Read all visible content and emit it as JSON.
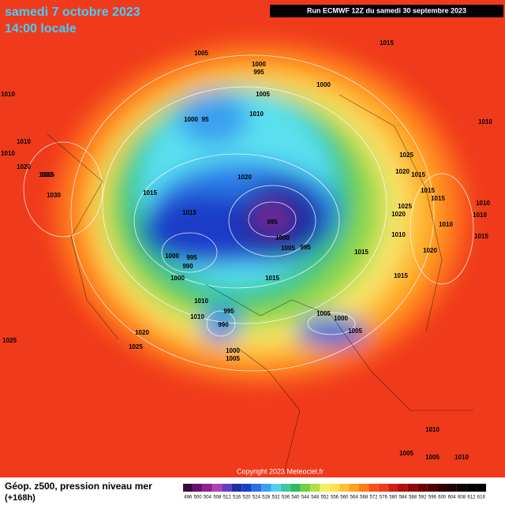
{
  "header": {
    "date": "samedi 7 octobre 2023",
    "time": "14:00 locale",
    "run": "Run ECMWF 12Z du samedi 30 septembre 2023"
  },
  "isobar_labels": [
    "1005",
    "1000",
    "995",
    "1015",
    "1010",
    "1000",
    "1005",
    "1000",
    "95",
    "1010",
    "1010",
    "1010",
    "1025",
    "1030",
    "1015",
    "1020",
    "1015",
    "995",
    "1000",
    "1005",
    "995",
    "1000",
    "995",
    "990",
    "1000",
    "1015",
    "1015",
    "1010",
    "1010",
    "995",
    "990",
    "1000",
    "1005",
    "1005",
    "1000",
    "1005",
    "1020",
    "1025",
    "1015",
    "1025",
    "1020",
    "1015",
    "1025",
    "1020",
    "1010",
    "1015",
    "1015",
    "1020",
    "1010",
    "1010",
    "1025",
    "1020",
    "1015",
    "1010",
    "1005",
    "1010",
    "1005",
    "1010",
    "1020",
    "1010"
  ],
  "footer": {
    "copyright": "Copyright 2023 Meteociel.fr",
    "title": "Géop. z500, pression niveau mer",
    "lead": "(+168h)"
  },
  "colorbar": {
    "labels": [
      496,
      500,
      504,
      508,
      512,
      516,
      520,
      524,
      528,
      532,
      536,
      540,
      544,
      548,
      552,
      556,
      560,
      564,
      568,
      572,
      576,
      580,
      584,
      588,
      592,
      596,
      600,
      604,
      608,
      612,
      616
    ]
  }
}
